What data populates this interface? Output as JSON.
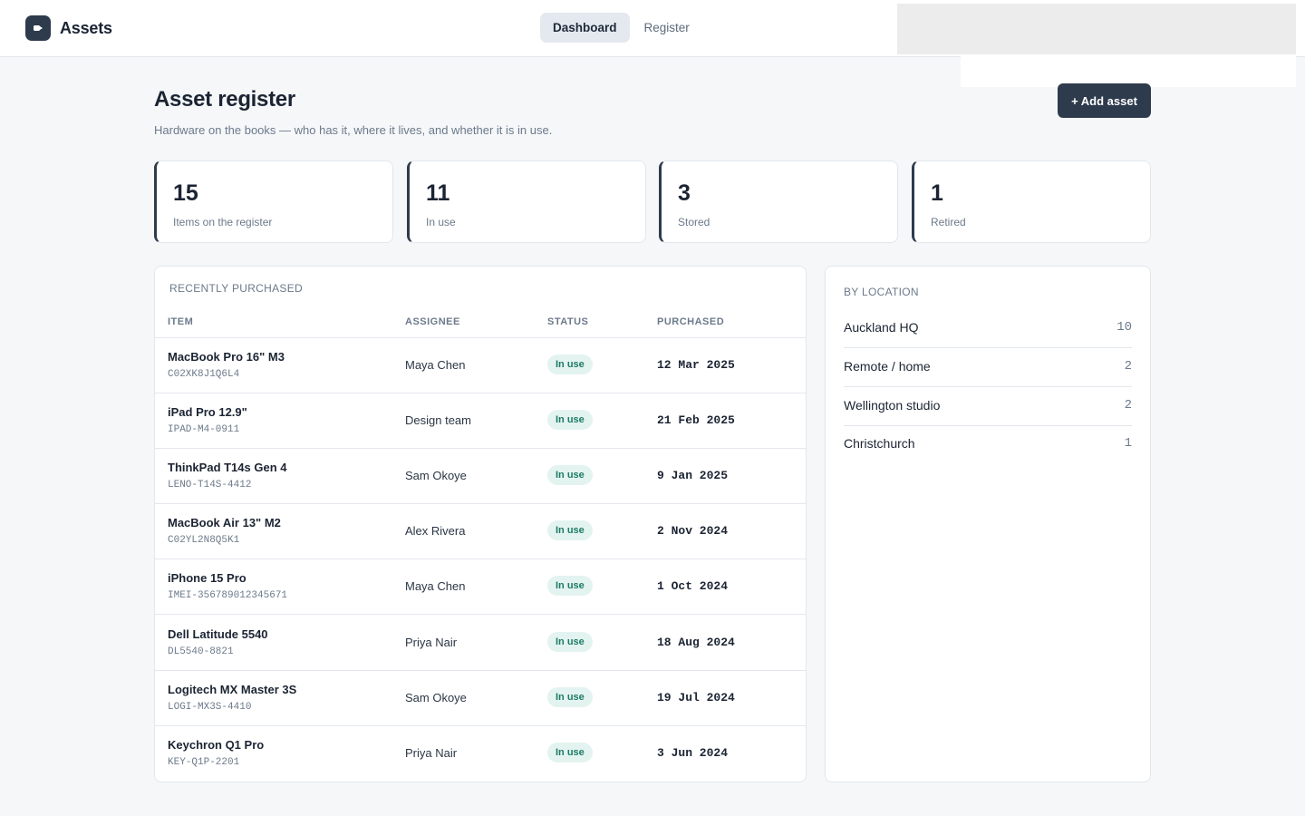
{
  "app": {
    "name": "Assets",
    "logo_icon": "camera-icon"
  },
  "nav": {
    "tabs": [
      {
        "label": "Dashboard",
        "active": true
      },
      {
        "label": "Register",
        "active": false
      }
    ]
  },
  "page": {
    "title": "Asset register",
    "subtitle": "Hardware on the books — who has it, where it lives, and whether it is in use.",
    "add_button": "+ Add asset"
  },
  "stats": [
    {
      "value": "15",
      "label": "Items on the register"
    },
    {
      "value": "11",
      "label": "In use"
    },
    {
      "value": "3",
      "label": "Stored"
    },
    {
      "value": "1",
      "label": "Retired"
    }
  ],
  "recent": {
    "heading": "Recently purchased",
    "columns": {
      "item": "Item",
      "assignee": "Assignee",
      "status": "Status",
      "purchased": "Purchased"
    },
    "rows": [
      {
        "name": "MacBook Pro 16\" M3",
        "serial": "C02XK8J1Q6L4",
        "assignee": "Maya Chen",
        "status": "In use",
        "purchased": "12 Mar 2025"
      },
      {
        "name": "iPad Pro 12.9\"",
        "serial": "IPAD-M4-0911",
        "assignee": "Design team",
        "status": "In use",
        "purchased": "21 Feb 2025"
      },
      {
        "name": "ThinkPad T14s Gen 4",
        "serial": "LENO-T14S-4412",
        "assignee": "Sam Okoye",
        "status": "In use",
        "purchased": "9 Jan 2025"
      },
      {
        "name": "MacBook Air 13\" M2",
        "serial": "C02YL2N8Q5K1",
        "assignee": "Alex Rivera",
        "status": "In use",
        "purchased": "2 Nov 2024"
      },
      {
        "name": "iPhone 15 Pro",
        "serial": "IMEI-356789012345671",
        "assignee": "Maya Chen",
        "status": "In use",
        "purchased": "1 Oct 2024"
      },
      {
        "name": "Dell Latitude 5540",
        "serial": "DL5540-8821",
        "assignee": "Priya Nair",
        "status": "In use",
        "purchased": "18 Aug 2024"
      },
      {
        "name": "Logitech MX Master 3S",
        "serial": "LOGI-MX3S-4410",
        "assignee": "Sam Okoye",
        "status": "In use",
        "purchased": "19 Jul 2024"
      },
      {
        "name": "Keychron Q1 Pro",
        "serial": "KEY-Q1P-2201",
        "assignee": "Priya Nair",
        "status": "In use",
        "purchased": "3 Jun 2024"
      }
    ]
  },
  "locations": {
    "heading": "By location",
    "items": [
      {
        "name": "Auckland HQ",
        "count": "10"
      },
      {
        "name": "Remote / home",
        "count": "2"
      },
      {
        "name": "Wellington studio",
        "count": "2"
      },
      {
        "name": "Christchurch",
        "count": "1"
      }
    ]
  },
  "colors": {
    "accent": "#2e3b4d",
    "status_in_use_bg": "#e3f4f0",
    "status_in_use_text": "#1f7a66"
  }
}
